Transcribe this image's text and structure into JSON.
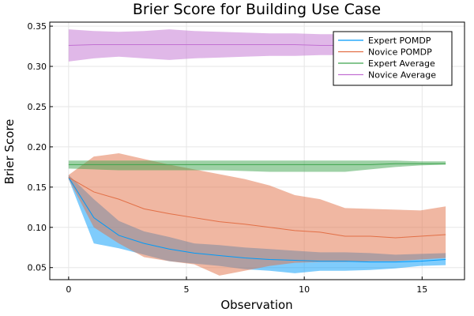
{
  "chart_data": {
    "type": "line",
    "title": "Brier Score for Building Use Case",
    "xlabel": "Observation",
    "ylabel": "Brier Score",
    "xlim": [
      -0.8,
      16.8
    ],
    "ylim": [
      0.035,
      0.355
    ],
    "xticks": [
      0,
      5,
      10,
      15
    ],
    "xtick_labels": [
      "0",
      "5",
      "10",
      "15"
    ],
    "yticks": [
      0.05,
      0.1,
      0.15,
      0.2,
      0.25,
      0.3,
      0.35
    ],
    "ytick_labels": [
      "0.05",
      "0.10",
      "0.15",
      "0.20",
      "0.25",
      "0.30",
      "0.35"
    ],
    "grid": true,
    "legend_position": "top-right",
    "x": [
      0,
      1.07,
      2.13,
      3.2,
      4.27,
      5.33,
      6.4,
      7.47,
      8.53,
      9.6,
      10.67,
      11.73,
      12.8,
      13.87,
      14.93,
      16
    ],
    "series": [
      {
        "name": "Expert POMDP",
        "color": "#009af9",
        "band_opacity": 0.5,
        "mean": [
          0.162,
          0.112,
          0.09,
          0.08,
          0.073,
          0.068,
          0.065,
          0.062,
          0.06,
          0.059,
          0.058,
          0.058,
          0.057,
          0.057,
          0.058,
          0.06
        ],
        "lower": [
          0.16,
          0.08,
          0.074,
          0.066,
          0.058,
          0.055,
          0.052,
          0.048,
          0.046,
          0.043,
          0.046,
          0.046,
          0.047,
          0.049,
          0.052,
          0.053
        ],
        "upper": [
          0.165,
          0.135,
          0.108,
          0.095,
          0.088,
          0.08,
          0.078,
          0.075,
          0.073,
          0.071,
          0.069,
          0.069,
          0.068,
          0.066,
          0.067,
          0.068
        ]
      },
      {
        "name": "Novice POMDP",
        "color": "#e26f46",
        "band_opacity": 0.5,
        "mean": [
          0.162,
          0.144,
          0.135,
          0.123,
          0.117,
          0.112,
          0.107,
          0.104,
          0.1,
          0.096,
          0.094,
          0.089,
          0.089,
          0.087,
          0.089,
          0.091
        ],
        "lower": [
          0.16,
          0.1,
          0.08,
          0.063,
          0.058,
          0.054,
          0.04,
          0.046,
          0.052,
          0.056,
          0.057,
          0.057,
          0.058,
          0.058,
          0.06,
          0.062
        ],
        "upper": [
          0.165,
          0.188,
          0.192,
          0.185,
          0.178,
          0.172,
          0.166,
          0.16,
          0.152,
          0.14,
          0.135,
          0.124,
          0.123,
          0.122,
          0.121,
          0.126
        ]
      },
      {
        "name": "Expert Average",
        "color": "#3da44d",
        "band_opacity": 0.5,
        "mean": [
          0.178,
          0.178,
          0.178,
          0.178,
          0.178,
          0.178,
          0.178,
          0.178,
          0.178,
          0.178,
          0.178,
          0.178,
          0.178,
          0.179,
          0.179,
          0.179
        ],
        "lower": [
          0.173,
          0.172,
          0.171,
          0.171,
          0.171,
          0.171,
          0.171,
          0.17,
          0.169,
          0.169,
          0.169,
          0.169,
          0.172,
          0.175,
          0.177,
          0.178
        ],
        "upper": [
          0.183,
          0.183,
          0.183,
          0.183,
          0.183,
          0.183,
          0.183,
          0.183,
          0.183,
          0.183,
          0.183,
          0.183,
          0.183,
          0.183,
          0.182,
          0.182
        ]
      },
      {
        "name": "Novice Average",
        "color": "#c271d2",
        "band_opacity": 0.5,
        "mean": [
          0.326,
          0.327,
          0.327,
          0.327,
          0.327,
          0.327,
          0.327,
          0.327,
          0.327,
          0.327,
          0.326,
          0.326,
          0.326,
          0.326,
          0.326,
          0.326
        ],
        "lower": [
          0.306,
          0.31,
          0.312,
          0.31,
          0.308,
          0.31,
          0.311,
          0.312,
          0.313,
          0.313,
          0.314,
          0.314,
          0.314,
          0.314,
          0.314,
          0.314
        ],
        "upper": [
          0.346,
          0.344,
          0.343,
          0.344,
          0.346,
          0.344,
          0.343,
          0.342,
          0.341,
          0.341,
          0.34,
          0.34,
          0.339,
          0.338,
          0.338,
          0.338
        ]
      }
    ]
  }
}
